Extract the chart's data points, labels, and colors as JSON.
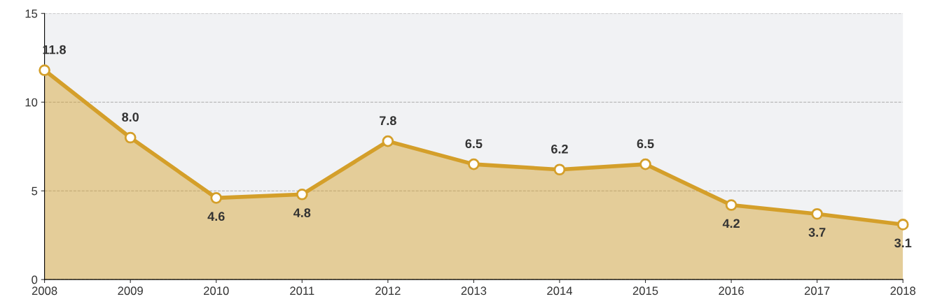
{
  "chart_data": {
    "type": "area",
    "x": [
      2008,
      2009,
      2010,
      2011,
      2012,
      2013,
      2014,
      2015,
      2016,
      2017,
      2018
    ],
    "series": [
      {
        "color": "#d49f2a",
        "values": [
          11.8,
          8.0,
          4.6,
          4.8,
          7.8,
          6.5,
          6.2,
          6.5,
          4.2,
          3.7,
          3.1
        ],
        "value_labels": [
          "11.8",
          "8.0",
          "4.6",
          "4.8",
          "7.8",
          "6.5",
          "6.2",
          "6.5",
          "4.2",
          "3.7",
          "3.1"
        ]
      }
    ],
    "xlim": [
      2008,
      2018
    ],
    "xticks": [
      2008,
      2009,
      2010,
      2011,
      2012,
      2013,
      2014,
      2015,
      2016,
      2017,
      2018
    ],
    "ylim": [
      0,
      15
    ],
    "yticks": [
      0,
      5,
      10,
      15
    ],
    "grid": "y",
    "marker": "circle",
    "line_style": "solid",
    "legend": false
  }
}
